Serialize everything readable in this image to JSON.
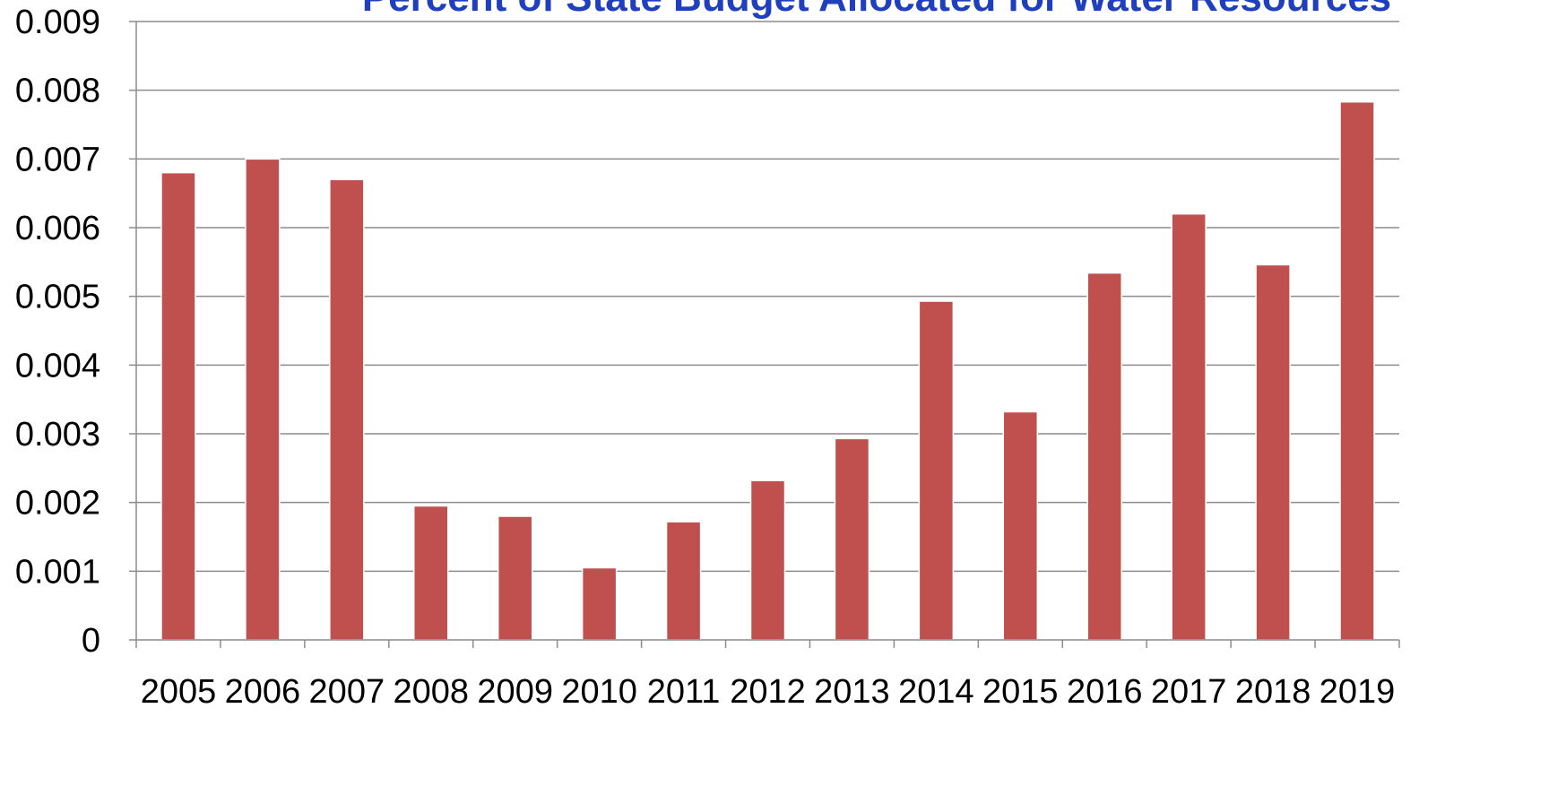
{
  "chart_data": {
    "type": "bar",
    "title": "Percent of State Budget Allocated for Water Resources",
    "xlabel": "",
    "ylabel": "",
    "categories": [
      "2005",
      "2006",
      "2007",
      "2008",
      "2009",
      "2010",
      "2011",
      "2012",
      "2013",
      "2014",
      "2015",
      "2016",
      "2017",
      "2018",
      "2019"
    ],
    "values": [
      0.0068,
      0.007,
      0.0067,
      0.00195,
      0.0018,
      0.00105,
      0.00172,
      0.00232,
      0.00293,
      0.00493,
      0.00332,
      0.00534,
      0.0062,
      0.00546,
      0.00783
    ],
    "ylim": [
      0,
      0.009
    ],
    "yticks": [
      "0",
      "0.001",
      "0.002",
      "0.003",
      "0.004",
      "0.005",
      "0.006",
      "0.007",
      "0.008",
      "0.009"
    ],
    "ytick_values": [
      0,
      0.001,
      0.002,
      0.003,
      0.004,
      0.005,
      0.006,
      0.007,
      0.008,
      0.009
    ],
    "grid": true,
    "legend": "none",
    "colors": {
      "bar": "#C0504D",
      "bar_edge": "#ffffff",
      "title": "#1F3FBF",
      "grid": "#8C8C8C",
      "axis": "#8C8C8C"
    }
  }
}
